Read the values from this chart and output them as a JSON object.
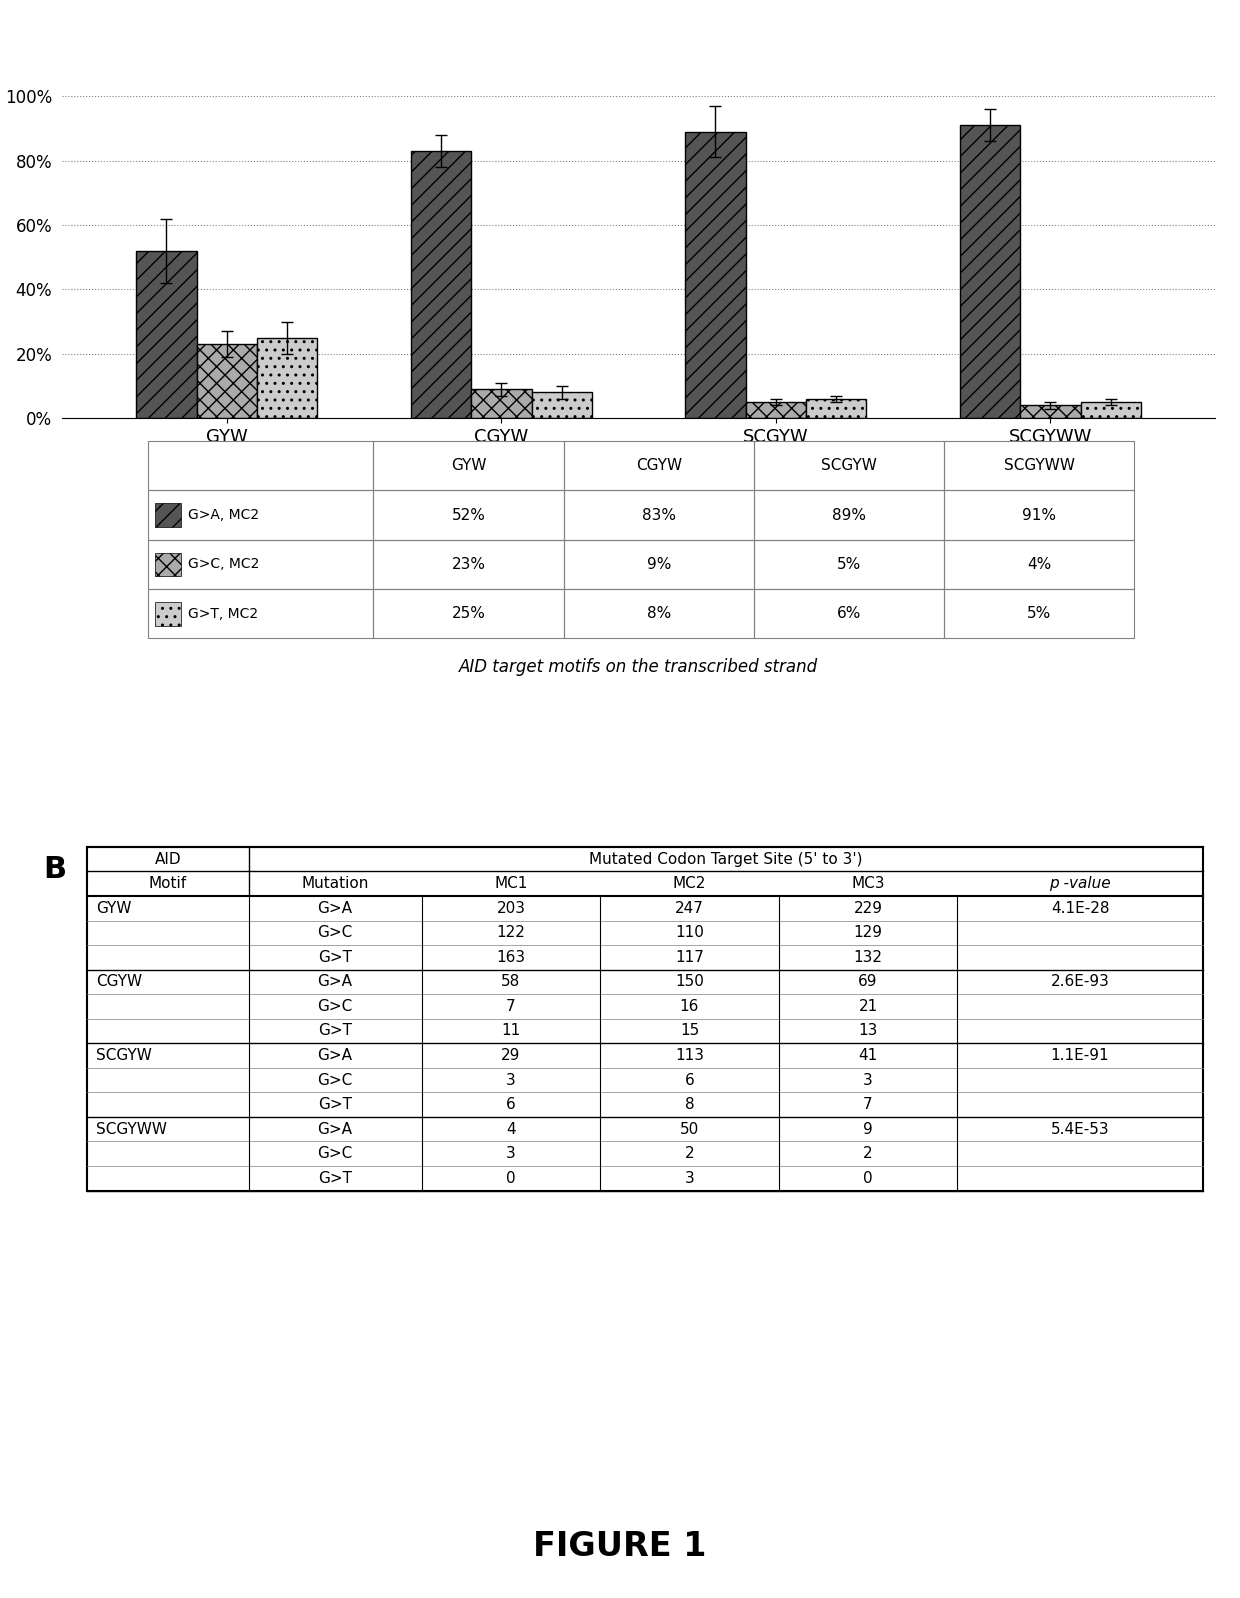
{
  "panel_A": {
    "categories": [
      "GYW",
      "CGYW",
      "SCGYW",
      "SCGYWW"
    ],
    "G_to_A": [
      52,
      83,
      89,
      91
    ],
    "G_to_C": [
      23,
      9,
      5,
      4
    ],
    "G_to_T": [
      25,
      8,
      6,
      5
    ],
    "G_to_A_err": [
      10,
      5,
      8,
      5
    ],
    "G_to_C_err": [
      4,
      2,
      1,
      1
    ],
    "G_to_T_err": [
      5,
      2,
      1,
      1
    ],
    "xlabel": "AID target motifs on the transcribed strand",
    "yticks": [
      0,
      20,
      40,
      60,
      80,
      100
    ],
    "ytick_labels": [
      "0%",
      "20%",
      "40%",
      "60%",
      "80%",
      "100%"
    ],
    "color_GA": "#555555",
    "color_GC": "#aaaaaa",
    "color_GT": "#cccccc",
    "table_data": [
      [
        "",
        "GYW",
        "CGYW",
        "SCGYW",
        "SCGYWW"
      ],
      [
        "G>A, MC2",
        "52%",
        "83%",
        "89%",
        "91%"
      ],
      [
        "G>C, MC2",
        "23%",
        "9%",
        "5%",
        "4%"
      ],
      [
        "G>T, MC2",
        "25%",
        "8%",
        "6%",
        "5%"
      ]
    ]
  },
  "panel_B": {
    "title": "Mutated Codon Target Site (5' to 3')",
    "rows": [
      [
        "GYW",
        "G>A",
        "203",
        "247",
        "229",
        "4.1E-28"
      ],
      [
        "",
        "G>C",
        "122",
        "110",
        "129",
        ""
      ],
      [
        "",
        "G>T",
        "163",
        "117",
        "132",
        ""
      ],
      [
        "CGYW",
        "G>A",
        "58",
        "150",
        "69",
        "2.6E-93"
      ],
      [
        "",
        "G>C",
        "7",
        "16",
        "21",
        ""
      ],
      [
        "",
        "G>T",
        "11",
        "15",
        "13",
        ""
      ],
      [
        "SCGYW",
        "G>A",
        "29",
        "113",
        "41",
        "1.1E-91"
      ],
      [
        "",
        "G>C",
        "3",
        "6",
        "3",
        ""
      ],
      [
        "",
        "G>T",
        "6",
        "8",
        "7",
        ""
      ],
      [
        "SCGYWW",
        "G>A",
        "4",
        "50",
        "9",
        "5.4E-53"
      ],
      [
        "",
        "G>C",
        "3",
        "2",
        "2",
        ""
      ],
      [
        "",
        "G>T",
        "0",
        "3",
        "0",
        ""
      ]
    ]
  },
  "figure_label": "FIGURE 1",
  "bg_color": "#ffffff"
}
